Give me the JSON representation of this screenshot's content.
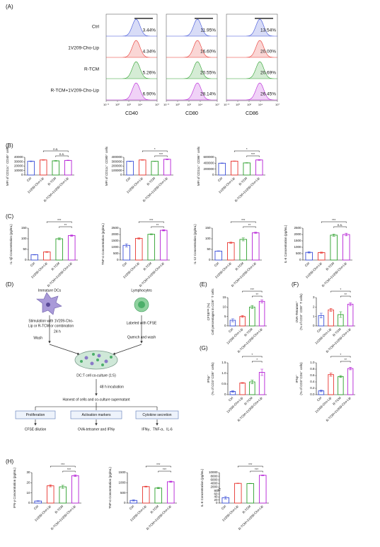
{
  "panel_labels": {
    "A": "(A)",
    "B": "(B)",
    "C": "(C)",
    "D": "(D)",
    "E": "(E)",
    "F": "(F)",
    "G": "(G)",
    "H": "(H)"
  },
  "diagram": {
    "immature_dcs": "Immature DCs",
    "lymphocytes": "Lymphocytes",
    "stimulation": [
      "Stimulation with 1V209-Cho-",
      "Lip or R-TCM or combination"
    ],
    "time_24h": "24 h",
    "wash": "Wash",
    "labeled": "Labeled with CFSE",
    "quench": "Quench and wash",
    "coculture": "DC:T cell co-culture (1:5)",
    "incubation": "48 h incubation",
    "harvest": "Harvest of cells and co-culture supernatant",
    "boxes": [
      "Proliferation",
      "Activation markers",
      "Cytokine secretion"
    ],
    "readouts": [
      "CFSE dilution",
      "OVA-tetramer and IFNγ",
      "IFNγ、TNF-α、IL-6"
    ]
  },
  "chart_data": [
    {
      "type": "flow",
      "markers": [
        "CD40",
        "CD80",
        "CD86"
      ],
      "xscale": "log",
      "xlim": [
        0.01,
        10000000
      ],
      "xticks": [
        {
          "value": 0.01,
          "label": "10⁻²"
        },
        {
          "value": 1,
          "label": "10⁰"
        },
        {
          "value": 100,
          "label": "10²"
        },
        {
          "value": 10000,
          "label": "10⁴"
        },
        {
          "value": 10000000,
          "label": "10⁷"
        }
      ],
      "series": [
        {
          "name": "Ctrl",
          "color": "#3b4fd8",
          "values": [
            3.44,
            11.95,
            13.54
          ],
          "value_labels": [
            "3.44%",
            "11.95%",
            "13.54%"
          ]
        },
        {
          "name": "1V209-Cho-Lip",
          "color": "#e8342e",
          "values": [
            4.34,
            16.6,
            20
          ],
          "value_labels": [
            "4.34%",
            "16.60%",
            "20.00%"
          ]
        },
        {
          "name": "R-TCM",
          "color": "#2ca02c",
          "values": [
            5.26,
            20.55,
            20.69
          ],
          "value_labels": [
            "5.26%",
            "20.55%",
            "20.69%"
          ]
        },
        {
          "name": "R-TCM+1V209-Cho-Lip",
          "color": "#b51fd6",
          "values": [
            6.9,
            28.14,
            26.45
          ],
          "value_labels": [
            "6.90%",
            "28.14%",
            "26.45%"
          ]
        }
      ]
    },
    {
      "type": "bar",
      "ylabel": [
        "MFI of CD11c⁺ CD40⁺ cells"
      ],
      "categories": [
        "Ctrl",
        "1V209-Cho-Lip",
        "R-TCM",
        "R-TCM+1V209-Cho-Lip"
      ],
      "colors": [
        "#3b4fd8",
        "#e8342e",
        "#2ca02c",
        "#b51fd6"
      ],
      "values": [
        31000,
        34000,
        32000,
        33000
      ],
      "errors": [
        800,
        600,
        700,
        600
      ],
      "ylim": [
        0,
        40000
      ],
      "yticks": [
        0,
        10000,
        20000,
        30000,
        40000
      ],
      "significance": [
        {
          "pair": [
            1,
            3
          ],
          "label": "n.s."
        },
        {
          "pair": [
            2,
            3
          ],
          "label": "n.s."
        }
      ]
    },
    {
      "type": "bar",
      "ylabel": [
        "MFI of CD11c⁺ CD80⁺ cells"
      ],
      "categories": [
        "Ctrl",
        "1V209-Cho-Lip",
        "R-TCM",
        "R-TCM+1V209-Cho-Lip"
      ],
      "colors": [
        "#3b4fd8",
        "#e8342e",
        "#2ca02c",
        "#b51fd6"
      ],
      "values": [
        310000,
        340000,
        310000,
        355000
      ],
      "errors": [
        5000,
        5000,
        4000,
        8000
      ],
      "ylim": [
        0,
        400000
      ],
      "yticks": [
        0,
        100000,
        200000,
        300000,
        400000
      ],
      "significance": [
        {
          "pair": [
            1,
            3
          ],
          "label": "*"
        },
        {
          "pair": [
            2,
            3
          ],
          "label": "***"
        }
      ]
    },
    {
      "type": "bar",
      "ylabel": [
        "MFI of CD11c⁺ CD86⁺ cells"
      ],
      "categories": [
        "Ctrl",
        "1V209-Cho-Lip",
        "R-TCM",
        "R-TCM+1V209-Cho-Lip"
      ],
      "colors": [
        "#3b4fd8",
        "#e8342e",
        "#2ca02c",
        "#b51fd6"
      ],
      "values": [
        400000,
        470000,
        410000,
        510000
      ],
      "errors": [
        8000,
        6000,
        8000,
        15000
      ],
      "ylim": [
        0,
        600000
      ],
      "yticks": [
        0,
        200000,
        400000,
        600000
      ],
      "significance": [
        {
          "pair": [
            1,
            3
          ],
          "label": "*"
        },
        {
          "pair": [
            2,
            3
          ],
          "label": "***"
        }
      ]
    },
    {
      "type": "bar",
      "ylabel": [
        "IL-1β Concentration (pg/mL)"
      ],
      "categories": [
        "Ctrl",
        "1V209-Cho-Lip",
        "R-TCM",
        "R-TCM+1V209-Cho-Lip"
      ],
      "colors": [
        "#3b4fd8",
        "#e8342e",
        "#2ca02c",
        "#b51fd6"
      ],
      "values": [
        25,
        38,
        100,
        115
      ],
      "errors": [
        1,
        2,
        4,
        3
      ],
      "ylim": [
        0,
        150
      ],
      "yticks": [
        0,
        50,
        100,
        150
      ],
      "significance": [
        {
          "pair": [
            1,
            3
          ],
          "label": "***"
        },
        {
          "pair": [
            2,
            3
          ],
          "label": "**"
        }
      ]
    },
    {
      "type": "bar",
      "ylabel": [
        "TNF-α Concentration (pg/mL)"
      ],
      "categories": [
        "Ctrl",
        "1V209-Cho-Lip",
        "R-TCM",
        "R-TCM+1V209-Cho-Lip"
      ],
      "colors": [
        "#3b4fd8",
        "#e8342e",
        "#2ca02c",
        "#b51fd6"
      ],
      "values": [
        1150,
        1700,
        2020,
        2330
      ],
      "errors": [
        120,
        50,
        30,
        50
      ],
      "ylim": [
        0,
        2500
      ],
      "yticks": [
        0,
        500,
        1000,
        1500,
        2000,
        2500
      ],
      "significance": [
        {
          "pair": [
            1,
            3
          ],
          "label": "***"
        },
        {
          "pair": [
            2,
            3
          ],
          "label": "**"
        }
      ]
    },
    {
      "type": "bar",
      "ylabel": [
        "IL-12 Concentration (pg/mL)"
      ],
      "categories": [
        "Ctrl",
        "1V209-Cho-Lip",
        "R-TCM",
        "R-TCM+1V209-Cho-Lip"
      ],
      "colors": [
        "#3b4fd8",
        "#e8342e",
        "#2ca02c",
        "#b51fd6"
      ],
      "values": [
        42,
        82,
        97,
        128
      ],
      "errors": [
        1,
        3,
        7,
        3
      ],
      "ylim": [
        0,
        150
      ],
      "yticks": [
        0,
        50,
        100,
        150
      ],
      "significance": [
        {
          "pair": [
            1,
            3
          ],
          "label": "***"
        },
        {
          "pair": [
            2,
            3
          ],
          "label": "**"
        }
      ]
    },
    {
      "type": "bar",
      "ylabel": [
        "IL-6 Concentration (pg/mL)"
      ],
      "categories": [
        "Ctrl",
        "1V209-Cho-Lip",
        "R-TCM",
        "R-TCM+1V209-Cho-Lip"
      ],
      "colors": [
        "#3b4fd8",
        "#e8342e",
        "#2ca02c",
        "#b51fd6"
      ],
      "values": [
        600,
        580,
        1950,
        2000
      ],
      "errors": [
        50,
        40,
        80,
        100
      ],
      "ylim": [
        0,
        2500
      ],
      "yticks": [
        0,
        500,
        1000,
        1500,
        2000,
        2500
      ],
      "significance": [
        {
          "pair": [
            1,
            3
          ],
          "label": "***"
        },
        {
          "pair": [
            2,
            3
          ],
          "label": "n.s."
        }
      ]
    },
    {
      "type": "bar",
      "ylabel": [
        "CFSEˡᵒʷ (%)",
        "Cell percentages in CD8⁺ T cells"
      ],
      "categories": [
        "Ctrl",
        "1V209-Cho-Lip",
        "R-TCM",
        "R-TCM+1V209-Cho-Lip"
      ],
      "colors": [
        "#3b4fd8",
        "#e8342e",
        "#2ca02c",
        "#b51fd6"
      ],
      "values": [
        3,
        5,
        10,
        13
      ],
      "errors": [
        0.8,
        0.5,
        0.8,
        0.8
      ],
      "ylim": [
        0,
        15
      ],
      "yticks": [
        0,
        5,
        10,
        15
      ],
      "significance": [
        {
          "pair": [
            1,
            3
          ],
          "label": "***"
        },
        {
          "pair": [
            2,
            3
          ],
          "label": "**"
        }
      ]
    },
    {
      "type": "bar",
      "ylabel": [
        "OVA-Tetramer⁺",
        "(% of CD3⁺ CD8⁺ T cells)"
      ],
      "categories": [
        "Ctrl",
        "1V209-Cho-Lip",
        "R-TCM",
        "R-TCM+1V209-Cho-Lip"
      ],
      "colors": [
        "#3b4fd8",
        "#e8342e",
        "#2ca02c",
        "#b51fd6"
      ],
      "values": [
        1.1,
        1.7,
        1.2,
        2.3
      ],
      "errors": [
        0.25,
        0.15,
        0.3,
        0.15
      ],
      "ylim": [
        0,
        3
      ],
      "yticks": [
        0,
        1,
        2,
        3
      ],
      "significance": [
        {
          "pair": [
            1,
            3
          ],
          "label": "*"
        },
        {
          "pair": [
            2,
            3
          ],
          "label": "**"
        }
      ]
    },
    {
      "type": "bar",
      "ylabel": [
        "IFNγ⁺",
        "(% of CD3⁺CD8⁺ cells)"
      ],
      "categories": [
        "Ctrl",
        "1V209-Cho-Lip",
        "R-TCM",
        "R-TCM+1V209-Cho-Lip"
      ],
      "colors": [
        "#3b4fd8",
        "#e8342e",
        "#2ca02c",
        "#b51fd6"
      ],
      "values": [
        0.15,
        0.55,
        0.6,
        1.05
      ],
      "errors": [
        0.03,
        0.02,
        0.08,
        0.15
      ],
      "ylim": [
        0,
        1.5
      ],
      "yticks": [
        0,
        0.5,
        {
          "value": 1,
          "label": "1.0"
        },
        1.5
      ],
      "significance": [
        {
          "pair": [
            1,
            3
          ],
          "label": "*"
        },
        {
          "pair": [
            2,
            3
          ],
          "label": "*"
        }
      ]
    },
    {
      "type": "bar",
      "ylabel": [
        "IFNγ⁺",
        "(% of CD3⁺CD4⁺ cells)"
      ],
      "categories": [
        "Ctrl",
        "1V209-Cho-Lip",
        "R-TCM",
        "R-TCM+1V209-Cho-Lip"
      ],
      "colors": [
        "#3b4fd8",
        "#e8342e",
        "#2ca02c",
        "#b51fd6"
      ],
      "values": [
        0.12,
        0.63,
        0.57,
        0.82
      ],
      "errors": [
        0.03,
        0.05,
        0.03,
        0.04
      ],
      "ylim": [
        0,
        1
      ],
      "yticks": [
        {
          "value": 0,
          "label": "0.0"
        },
        0.2,
        0.4,
        0.6,
        0.8,
        {
          "value": 1,
          "label": "1.0"
        }
      ],
      "significance": [
        {
          "pair": [
            1,
            3
          ],
          "label": "*"
        },
        {
          "pair": [
            2,
            3
          ],
          "label": "**"
        }
      ]
    },
    {
      "type": "bar",
      "ylabel": [
        "IFN-γ Concentration (pg/mL)"
      ],
      "categories": [
        "Ctrl",
        "1V209-Cho-Lip",
        "R-TCM",
        "R-TCM+1V209-Cho-Lip"
      ],
      "colors": [
        "#3b4fd8",
        "#e8342e",
        "#2ca02c",
        "#b51fd6"
      ],
      "values": [
        2,
        17,
        16,
        27
      ],
      "errors": [
        0.3,
        1,
        1.5,
        0.8
      ],
      "ylim": [
        0,
        30
      ],
      "yticks": [
        0,
        10,
        20,
        30
      ],
      "significance": [
        {
          "pair": [
            1,
            3
          ],
          "label": "***"
        },
        {
          "pair": [
            2,
            3
          ],
          "label": "***"
        }
      ]
    },
    {
      "type": "bar",
      "ylabel": [
        "TNF-α Concentration (pg/mL)"
      ],
      "categories": [
        "Ctrl",
        "1V209-Cho-Lip",
        "R-TCM",
        "R-TCM+1V209-Cho-Lip"
      ],
      "colors": [
        "#3b4fd8",
        "#e8342e",
        "#2ca02c",
        "#b51fd6"
      ],
      "values": [
        130,
        810,
        740,
        1050
      ],
      "errors": [
        30,
        20,
        30,
        30
      ],
      "ylim": [
        0,
        1500
      ],
      "yticks": [
        0,
        500,
        1000,
        1500
      ],
      "significance": [
        {
          "pair": [
            1,
            3
          ],
          "label": "***"
        },
        {
          "pair": [
            2,
            3
          ],
          "label": "***"
        }
      ]
    },
    {
      "type": "bar",
      "ylabel": [
        "IL-6 Concentration (pg/mL)"
      ],
      "categories": [
        "Ctrl",
        "1V209-Cho-Lip",
        "R-TCM",
        "R-TCM+1V209-Cho-Lip"
      ],
      "colors": [
        "#3b4fd8",
        "#e8342e",
        "#2ca02c",
        "#b51fd6"
      ],
      "values": [
        35,
        4000,
        3900,
        8500
      ],
      "errors": [
        8,
        100,
        100,
        200
      ],
      "ylim": [
        0,
        10000
      ],
      "ybreak": [
        80,
        1000
      ],
      "yticks": [
        0,
        20,
        40,
        60,
        80,
        2000,
        4000,
        6000,
        8000,
        10000
      ],
      "significance": [
        {
          "pair": [
            1,
            3
          ],
          "label": "***"
        },
        {
          "pair": [
            2,
            3
          ],
          "label": "***"
        }
      ]
    }
  ]
}
